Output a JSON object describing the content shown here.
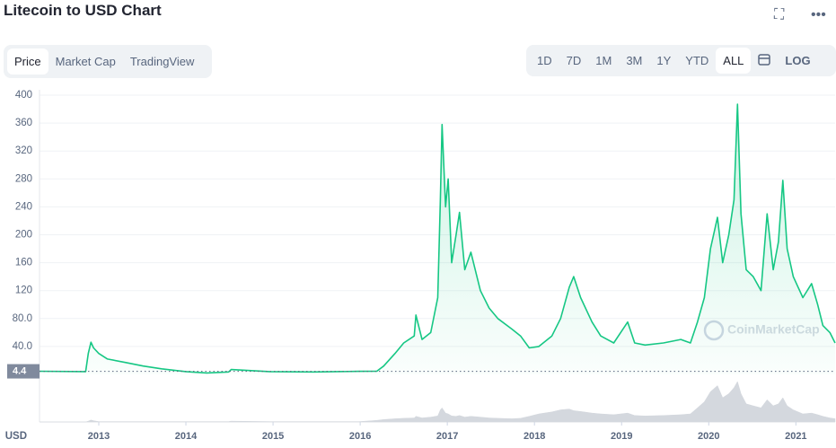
{
  "header": {
    "title": "Litecoin to USD Chart"
  },
  "tabs": [
    "Price",
    "Market Cap",
    "TradingView"
  ],
  "ranges": [
    "1D",
    "7D",
    "1M",
    "3M",
    "1Y",
    "YTD",
    "ALL"
  ],
  "log_button": "LOG",
  "chart_data": {
    "type": "line",
    "ylabel": "USD",
    "watermark": "CoinMarketCap",
    "current_price": 4.4,
    "x": [
      2012.32,
      2012.85,
      2012.88,
      2012.91,
      2012.94,
      2013.0,
      2013.1,
      2013.31,
      2013.51,
      2013.72,
      2014.0,
      2014.24,
      2014.49,
      2014.52,
      2014.96,
      2015.47,
      2015.99,
      2016.19,
      2016.27,
      2016.4,
      2016.5,
      2016.62,
      2016.64,
      2016.71,
      2016.81,
      2016.89,
      2016.92,
      2016.94,
      2016.98,
      2017.01,
      2017.05,
      2017.1,
      2017.14,
      2017.2,
      2017.27,
      2017.38,
      2017.48,
      2017.58,
      2017.74,
      2017.84,
      2017.94,
      2018.05,
      2018.2,
      2018.3,
      2018.4,
      2018.45,
      2018.53,
      2018.66,
      2018.76,
      2018.91,
      2019.07,
      2019.15,
      2019.27,
      2019.48,
      2019.68,
      2019.79,
      2019.87,
      2019.95,
      2020.02,
      2020.1,
      2020.16,
      2020.23,
      2020.29,
      2020.33,
      2020.37,
      2020.43,
      2020.51,
      2020.6,
      2020.67,
      2020.74,
      2020.8,
      2020.85,
      2020.9,
      2020.97,
      2021.08,
      2021.18,
      2021.25,
      2021.31,
      2021.39,
      2021.45
    ],
    "series": [
      {
        "name": "Price",
        "color": "#16c784",
        "values": [
          4.5,
          4,
          30,
          46,
          38,
          30,
          22,
          17,
          12,
          8,
          4,
          2,
          3.5,
          7,
          4,
          3.5,
          4.4,
          4.5,
          12,
          30,
          45,
          55,
          85,
          50,
          60,
          110,
          250,
          358,
          240,
          280,
          160,
          200,
          232,
          150,
          175,
          120,
          95,
          80,
          65,
          55,
          38,
          40,
          55,
          80,
          125,
          140,
          110,
          75,
          55,
          45,
          75,
          45,
          42,
          45,
          50,
          45,
          75,
          110,
          180,
          225,
          160,
          200,
          250,
          387,
          230,
          150,
          140,
          120,
          230,
          150,
          190,
          278,
          180,
          140,
          110,
          130,
          100,
          70,
          60,
          45
        ]
      },
      {
        "color": "#d4d8de",
        "axis": "y2",
        "values": [
          0,
          0,
          2,
          5,
          3,
          1,
          1,
          1,
          1,
          1,
          1,
          1,
          1,
          2,
          1,
          1,
          1,
          4,
          6,
          8,
          9,
          10,
          14,
          10,
          12,
          15,
          30,
          35,
          22,
          20,
          15,
          14,
          16,
          12,
          14,
          12,
          10,
          9,
          8,
          9,
          14,
          20,
          25,
          30,
          32,
          28,
          26,
          22,
          20,
          18,
          22,
          16,
          15,
          16,
          18,
          20,
          35,
          50,
          75,
          90,
          60,
          70,
          85,
          100,
          70,
          45,
          40,
          35,
          55,
          40,
          45,
          60,
          40,
          30,
          20,
          22,
          18,
          14,
          10,
          8
        ]
      }
    ],
    "xlim": [
      2012.32,
      2021.45
    ],
    "xticks": [
      2013,
      2014,
      2015,
      2016,
      2017,
      2018,
      2019,
      2020,
      2021
    ],
    "ylim": [
      0,
      400
    ],
    "yticks": [
      {
        "value": 40,
        "label": "40.0"
      },
      {
        "value": 80,
        "label": "80.0"
      },
      120,
      160,
      200,
      240,
      280,
      320,
      360,
      400
    ],
    "y2lim": [
      0,
      100
    ],
    "grid": true
  }
}
